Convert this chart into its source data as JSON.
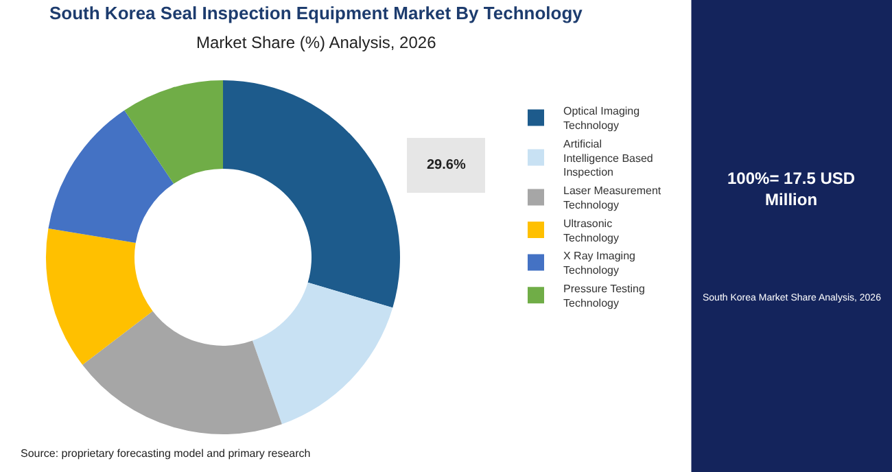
{
  "chart_data": {
    "type": "donut",
    "title": "South Korea Seal Inspection Equipment Market By Technology",
    "subtitle": "Market Share (%) Analysis, 2026",
    "categories": [
      "Optical Imaging Technology",
      "Artificial Intelligence Based Inspection",
      "Laser Measurement Technology",
      "Ultrasonic Technology",
      "X Ray Imaging Technology",
      "Pressure Testing Technology"
    ],
    "values": [
      29.6,
      15,
      20,
      13,
      13,
      9.4
    ],
    "colors": [
      "#1d5b8c",
      "#c8e1f3",
      "#a6a6a6",
      "#ffc000",
      "#4472c4",
      "#70ad47"
    ],
    "value_labels": [
      "29.6%",
      null,
      null,
      null,
      null,
      null
    ],
    "legend": "right",
    "annotations": [
      "100%= 17.5 USD Million",
      "South Korea Market Share Analysis, 2026",
      "Source: proprietary forecasting model and primary research"
    ]
  }
}
